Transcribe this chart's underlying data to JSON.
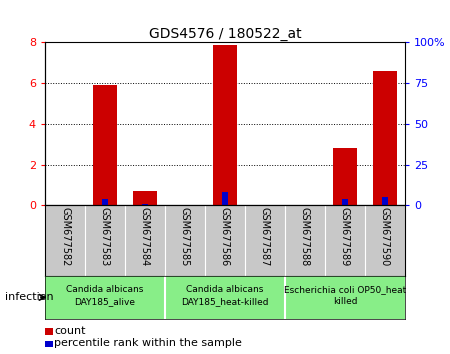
{
  "title": "GDS4576 / 180522_at",
  "samples": [
    "GSM677582",
    "GSM677583",
    "GSM677584",
    "GSM677585",
    "GSM677586",
    "GSM677587",
    "GSM677588",
    "GSM677589",
    "GSM677590"
  ],
  "count_values": [
    0.0,
    5.9,
    0.7,
    0.0,
    7.9,
    0.0,
    0.0,
    2.8,
    6.6
  ],
  "percentile_values": [
    0.0,
    4.0,
    1.0,
    0.0,
    8.0,
    0.0,
    0.0,
    4.0,
    5.0
  ],
  "ylim_left": [
    0,
    8
  ],
  "ylim_right": [
    0,
    100
  ],
  "yticks_left": [
    0,
    2,
    4,
    6,
    8
  ],
  "yticks_right": [
    0,
    25,
    50,
    75,
    100
  ],
  "yticklabels_right": [
    "0",
    "25",
    "50",
    "75",
    "100%"
  ],
  "count_color": "#cc0000",
  "percentile_color": "#0000cc",
  "bg_color": "#ffffff",
  "tick_area_color": "#c8c8c8",
  "group_color": "#88ee88",
  "groups": [
    {
      "label": "Candida albicans\nDAY185_alive",
      "start": 0,
      "end": 3
    },
    {
      "label": "Candida albicans\nDAY185_heat-killed",
      "start": 3,
      "end": 6
    },
    {
      "label": "Escherichia coli OP50_heat\nkilled",
      "start": 6,
      "end": 9
    }
  ],
  "infection_label": "infection",
  "legend_count": "count",
  "legend_pct": "percentile rank within the sample"
}
